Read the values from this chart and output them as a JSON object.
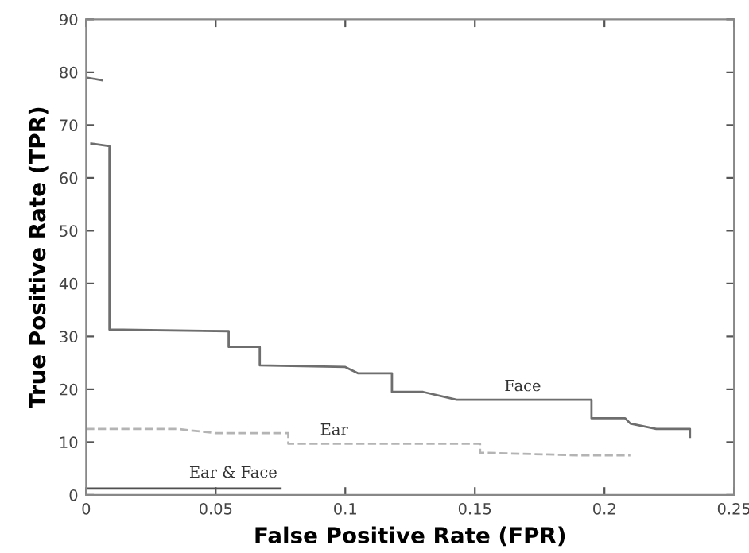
{
  "chart_data": {
    "type": "line",
    "xlabel": "False Positive Rate (FPR)",
    "ylabel": "True Positive Rate (TPR)",
    "xlim": [
      0,
      0.25
    ],
    "ylim": [
      0,
      90
    ],
    "xticks": [
      0,
      0.05,
      0.1,
      0.15,
      0.2,
      0.25
    ],
    "yticks": [
      0,
      10,
      20,
      30,
      40,
      50,
      60,
      70,
      80,
      90
    ],
    "grid": false,
    "legend": false,
    "series": [
      {
        "color": "#6e6e6e",
        "line_style": "solid",
        "x": [
          0,
          0.006
        ],
        "values": [
          79,
          78.5
        ]
      },
      {
        "name": "Face",
        "color": "#6e6e6e",
        "line_style": "solid",
        "x": [
          0.002,
          0.009,
          0.009,
          0.055,
          0.055,
          0.067,
          0.067,
          0.1,
          0.105,
          0.118,
          0.118,
          0.13,
          0.143,
          0.195,
          0.195,
          0.208,
          0.21,
          0.22,
          0.233,
          0.233
        ],
        "values": [
          66.5,
          66,
          31.3,
          31,
          28,
          28,
          24.5,
          24.2,
          23,
          23,
          19.5,
          19.5,
          18,
          18,
          14.5,
          14.5,
          13.5,
          12.5,
          12.5,
          11
        ]
      },
      {
        "name": "Ear",
        "color": "#b4b4b4",
        "line_style": "dashed",
        "x": [
          0,
          0.035,
          0.05,
          0.078,
          0.078,
          0.152,
          0.152,
          0.19,
          0.21
        ],
        "values": [
          12.5,
          12.5,
          11.7,
          11.7,
          9.7,
          9.7,
          8,
          7.5,
          7.5
        ]
      },
      {
        "name": "Ear & Face",
        "color": "#505050",
        "line_style": "solid",
        "x": [
          0,
          0.075
        ],
        "values": [
          1.2,
          1.2
        ]
      }
    ]
  }
}
